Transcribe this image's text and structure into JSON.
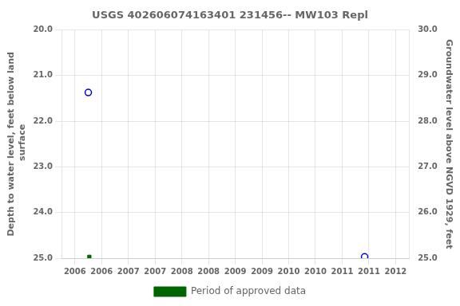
{
  "chart_data": {
    "type": "scatter",
    "title": "USGS 402606074163401 231456-- MW103 Repl",
    "y_label": "Depth to water level, feet below land\n surface",
    "y2_label": "Groundwater level above NGVD 1929, feet",
    "xlim": [
      2005.75,
      2012.25
    ],
    "xticks": [
      2006,
      {
        "value": 2006.5,
        "label": "2006"
      },
      2007,
      {
        "value": 2007.5,
        "label": "2007"
      },
      2008,
      {
        "value": 2008.5,
        "label": "2008"
      },
      2009,
      {
        "value": 2009.5,
        "label": "2009"
      },
      2010,
      {
        "value": 2010.5,
        "label": "2010"
      },
      2011,
      {
        "value": 2011.5,
        "label": "2011"
      },
      2012
    ],
    "ylim": [
      25.0,
      20.0
    ],
    "yticks": [
      {
        "value": 20.0,
        "label": "20.0"
      },
      {
        "value": 21.0,
        "label": "21.0"
      },
      {
        "value": 22.0,
        "label": "22.0"
      },
      {
        "value": 23.0,
        "label": "23.0"
      },
      {
        "value": 24.0,
        "label": "24.0"
      },
      {
        "value": 25.0,
        "label": "25.0"
      }
    ],
    "y2lim": [
      25.0,
      30.0
    ],
    "y2ticks": [
      {
        "value": 25.0,
        "label": "25.0"
      },
      {
        "value": 26.0,
        "label": "26.0"
      },
      {
        "value": 27.0,
        "label": "27.0"
      },
      {
        "value": 28.0,
        "label": "28.0"
      },
      {
        "value": 29.0,
        "label": "29.0"
      },
      {
        "value": 30.0,
        "label": "30.0"
      }
    ],
    "grid": true,
    "legend": "bottom",
    "series": [
      {
        "x": [
          2006.25,
          2011.42
        ],
        "values": [
          21.37,
          24.97
        ],
        "color": "#0000cd",
        "marker": "hollow_circle"
      },
      {
        "name": "Period of approved data",
        "x": [
          2006.27
        ],
        "values": [
          24.97
        ],
        "color": "#006400",
        "marker": "square"
      }
    ]
  }
}
